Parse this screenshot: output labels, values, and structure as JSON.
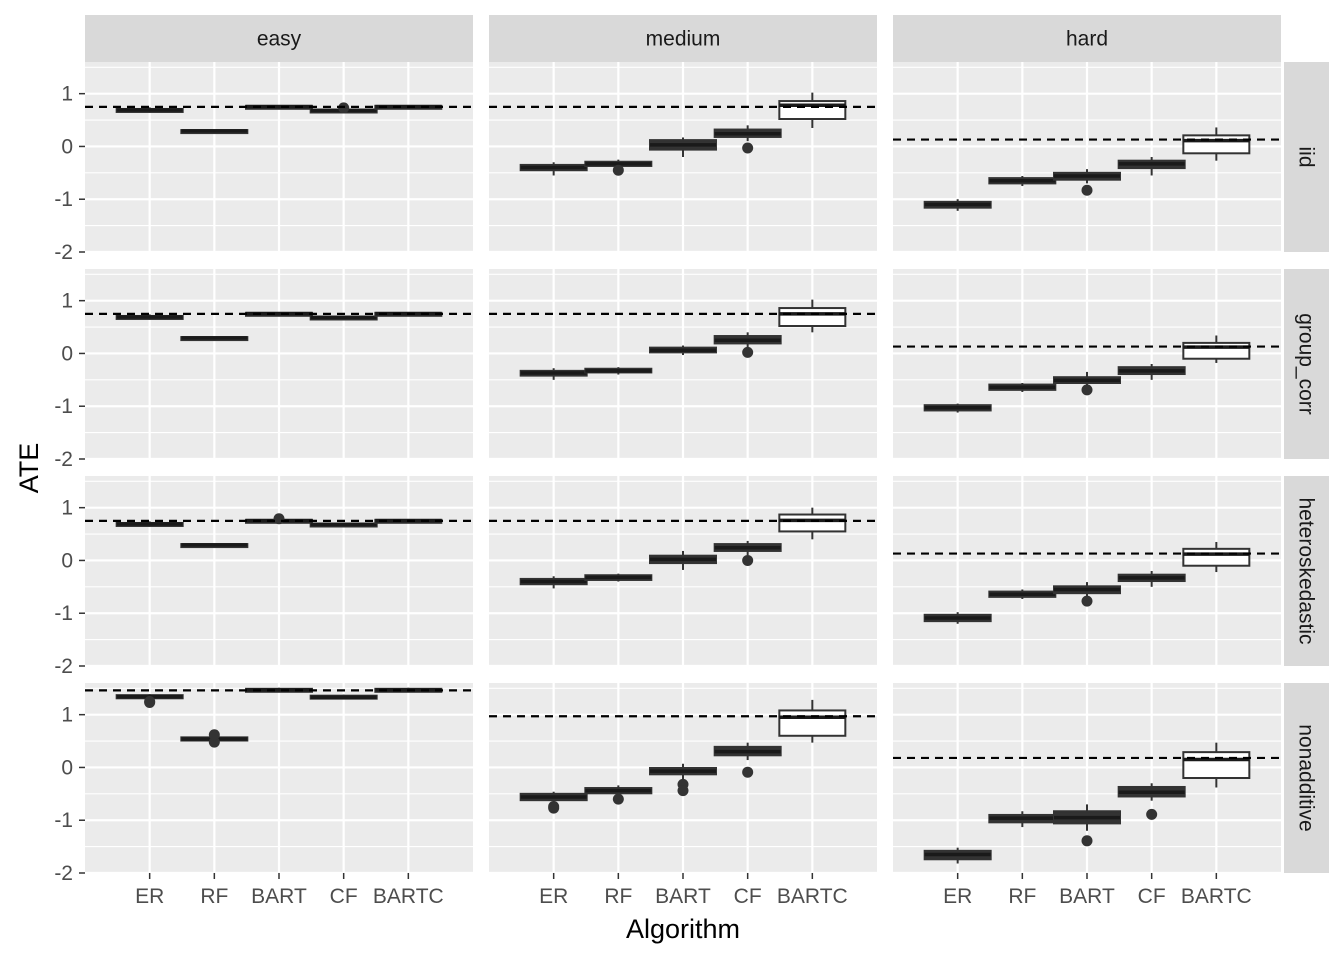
{
  "chart_data": {
    "type": "boxplot",
    "xlabel": "Algorithm",
    "ylabel": "ATE",
    "categories": [
      "ER",
      "RF",
      "BART",
      "CF",
      "BARTC"
    ],
    "ylim": [
      -2,
      1.6
    ],
    "yticks": [
      -2,
      -1,
      0,
      1
    ],
    "ytick_labels": [
      "-2",
      "-1",
      "0",
      "1"
    ],
    "grid": true,
    "reference_line_style": "dashed",
    "col_facets": [
      "easy",
      "medium",
      "hard"
    ],
    "row_facets": [
      "iid",
      "group_corr",
      "heteroskedastic",
      "nonadditive"
    ],
    "colors": {
      "panel_bg": "#ebebeb",
      "strip_bg": "#d9d9d9",
      "grid": "#ffffff",
      "box_dark": "#333333",
      "box_light": "#ffffff"
    },
    "panels": [
      {
        "row": "iid",
        "col": "easy",
        "reference": 0.75,
        "boxes": [
          {
            "q1": 0.66,
            "med": 0.69,
            "q3": 0.71,
            "wl": 0.64,
            "wh": 0.74,
            "out": []
          },
          {
            "q1": 0.28,
            "med": 0.295,
            "q3": 0.31,
            "wl": 0.27,
            "wh": 0.32,
            "out": []
          },
          {
            "q1": 0.74,
            "med": 0.755,
            "q3": 0.77,
            "wl": 0.73,
            "wh": 0.78,
            "out": []
          },
          {
            "q1": 0.66,
            "med": 0.68,
            "q3": 0.7,
            "wl": 0.64,
            "wh": 0.72,
            "out": [
              0.73
            ]
          },
          {
            "q1": 0.74,
            "med": 0.755,
            "q3": 0.77,
            "wl": 0.73,
            "wh": 0.78,
            "out": []
          }
        ]
      },
      {
        "row": "iid",
        "col": "medium",
        "reference": 0.75,
        "boxes": [
          {
            "q1": -0.45,
            "med": -0.4,
            "q3": -0.35,
            "wl": -0.55,
            "wh": -0.3,
            "out": []
          },
          {
            "q1": -0.37,
            "med": -0.33,
            "q3": -0.29,
            "wl": -0.42,
            "wh": -0.25,
            "out": [
              -0.45
            ]
          },
          {
            "q1": -0.06,
            "med": 0.03,
            "q3": 0.12,
            "wl": -0.2,
            "wh": 0.17,
            "out": []
          },
          {
            "q1": 0.18,
            "med": 0.24,
            "q3": 0.32,
            "wl": 0.1,
            "wh": 0.4,
            "out": [
              -0.03
            ]
          },
          {
            "q1": 0.52,
            "med": 0.78,
            "q3": 0.86,
            "wl": 0.35,
            "wh": 1.02,
            "out": []
          }
        ]
      },
      {
        "row": "iid",
        "col": "hard",
        "reference": 0.13,
        "boxes": [
          {
            "q1": -1.16,
            "med": -1.1,
            "q3": -1.05,
            "wl": -1.22,
            "wh": -1.0,
            "out": []
          },
          {
            "q1": -0.7,
            "med": -0.65,
            "q3": -0.6,
            "wl": -0.75,
            "wh": -0.56,
            "out": []
          },
          {
            "q1": -0.63,
            "med": -0.56,
            "q3": -0.5,
            "wl": -0.7,
            "wh": -0.43,
            "out": [
              -0.83
            ]
          },
          {
            "q1": -0.41,
            "med": -0.33,
            "q3": -0.27,
            "wl": -0.55,
            "wh": -0.2,
            "out": []
          },
          {
            "q1": -0.13,
            "med": 0.11,
            "q3": 0.21,
            "wl": -0.27,
            "wh": 0.36,
            "out": []
          }
        ]
      },
      {
        "row": "group_corr",
        "col": "easy",
        "reference": 0.75,
        "boxes": [
          {
            "q1": 0.66,
            "med": 0.69,
            "q3": 0.71,
            "wl": 0.64,
            "wh": 0.74,
            "out": []
          },
          {
            "q1": 0.28,
            "med": 0.295,
            "q3": 0.31,
            "wl": 0.27,
            "wh": 0.32,
            "out": []
          },
          {
            "q1": 0.74,
            "med": 0.755,
            "q3": 0.77,
            "wl": 0.73,
            "wh": 0.78,
            "out": []
          },
          {
            "q1": 0.66,
            "med": 0.68,
            "q3": 0.7,
            "wl": 0.64,
            "wh": 0.72,
            "out": []
          },
          {
            "q1": 0.74,
            "med": 0.755,
            "q3": 0.77,
            "wl": 0.73,
            "wh": 0.78,
            "out": []
          }
        ]
      },
      {
        "row": "group_corr",
        "col": "medium",
        "reference": 0.75,
        "boxes": [
          {
            "q1": -0.42,
            "med": -0.37,
            "q3": -0.33,
            "wl": -0.5,
            "wh": -0.28,
            "out": []
          },
          {
            "q1": -0.36,
            "med": -0.33,
            "q3": -0.29,
            "wl": -0.4,
            "wh": -0.26,
            "out": []
          },
          {
            "q1": 0.02,
            "med": 0.06,
            "q3": 0.11,
            "wl": -0.03,
            "wh": 0.15,
            "out": []
          },
          {
            "q1": 0.19,
            "med": 0.25,
            "q3": 0.33,
            "wl": 0.12,
            "wh": 0.4,
            "out": [
              0.02
            ]
          },
          {
            "q1": 0.52,
            "med": 0.75,
            "q3": 0.86,
            "wl": 0.4,
            "wh": 1.02,
            "out": []
          }
        ]
      },
      {
        "row": "group_corr",
        "col": "hard",
        "reference": 0.13,
        "boxes": [
          {
            "q1": -1.08,
            "med": -1.03,
            "q3": -0.98,
            "wl": -1.12,
            "wh": -0.95,
            "out": []
          },
          {
            "q1": -0.69,
            "med": -0.64,
            "q3": -0.59,
            "wl": -0.73,
            "wh": -0.56,
            "out": []
          },
          {
            "q1": -0.56,
            "med": -0.51,
            "q3": -0.45,
            "wl": -0.62,
            "wh": -0.35,
            "out": [
              -0.69
            ]
          },
          {
            "q1": -0.39,
            "med": -0.33,
            "q3": -0.26,
            "wl": -0.5,
            "wh": -0.2,
            "out": []
          },
          {
            "q1": -0.1,
            "med": 0.12,
            "q3": 0.2,
            "wl": -0.18,
            "wh": 0.34,
            "out": []
          }
        ]
      },
      {
        "row": "heteroskedastic",
        "col": "easy",
        "reference": 0.75,
        "boxes": [
          {
            "q1": 0.66,
            "med": 0.69,
            "q3": 0.71,
            "wl": 0.64,
            "wh": 0.74,
            "out": []
          },
          {
            "q1": 0.28,
            "med": 0.295,
            "q3": 0.31,
            "wl": 0.27,
            "wh": 0.32,
            "out": []
          },
          {
            "q1": 0.74,
            "med": 0.755,
            "q3": 0.77,
            "wl": 0.73,
            "wh": 0.78,
            "out": [
              0.79
            ]
          },
          {
            "q1": 0.66,
            "med": 0.68,
            "q3": 0.7,
            "wl": 0.64,
            "wh": 0.72,
            "out": []
          },
          {
            "q1": 0.74,
            "med": 0.755,
            "q3": 0.77,
            "wl": 0.73,
            "wh": 0.78,
            "out": []
          }
        ]
      },
      {
        "row": "heteroskedastic",
        "col": "medium",
        "reference": 0.75,
        "boxes": [
          {
            "q1": -0.45,
            "med": -0.4,
            "q3": -0.35,
            "wl": -0.53,
            "wh": -0.3,
            "out": []
          },
          {
            "q1": -0.37,
            "med": -0.32,
            "q3": -0.28,
            "wl": -0.4,
            "wh": -0.25,
            "out": []
          },
          {
            "q1": -0.05,
            "med": 0.02,
            "q3": 0.09,
            "wl": -0.18,
            "wh": 0.18,
            "out": []
          },
          {
            "q1": 0.18,
            "med": 0.24,
            "q3": 0.31,
            "wl": 0.1,
            "wh": 0.37,
            "out": [
              0.0
            ]
          },
          {
            "q1": 0.55,
            "med": 0.76,
            "q3": 0.87,
            "wl": 0.4,
            "wh": 1.0,
            "out": []
          }
        ]
      },
      {
        "row": "heteroskedastic",
        "col": "hard",
        "reference": 0.13,
        "boxes": [
          {
            "q1": -1.15,
            "med": -1.09,
            "q3": -1.03,
            "wl": -1.2,
            "wh": -0.98,
            "out": []
          },
          {
            "q1": -0.69,
            "med": -0.64,
            "q3": -0.59,
            "wl": -0.73,
            "wh": -0.55,
            "out": []
          },
          {
            "q1": -0.62,
            "med": -0.55,
            "q3": -0.49,
            "wl": -0.68,
            "wh": -0.41,
            "out": [
              -0.77
            ]
          },
          {
            "q1": -0.39,
            "med": -0.33,
            "q3": -0.27,
            "wl": -0.5,
            "wh": -0.2,
            "out": []
          },
          {
            "q1": -0.1,
            "med": 0.12,
            "q3": 0.22,
            "wl": -0.22,
            "wh": 0.35,
            "out": []
          }
        ]
      },
      {
        "row": "nonadditive",
        "col": "easy",
        "reference": 1.46,
        "boxes": [
          {
            "q1": 1.31,
            "med": 1.34,
            "q3": 1.37,
            "wl": 1.29,
            "wh": 1.39,
            "out": [
              1.25,
              1.23
            ]
          },
          {
            "q1": 0.51,
            "med": 0.54,
            "q3": 0.57,
            "wl": 0.49,
            "wh": 0.6,
            "out": [
              0.48,
              0.62
            ]
          },
          {
            "q1": 1.44,
            "med": 1.47,
            "q3": 1.49,
            "wl": 1.42,
            "wh": 1.51,
            "out": []
          },
          {
            "q1": 1.31,
            "med": 1.33,
            "q3": 1.36,
            "wl": 1.29,
            "wh": 1.38,
            "out": []
          },
          {
            "q1": 1.44,
            "med": 1.47,
            "q3": 1.49,
            "wl": 1.42,
            "wh": 1.51,
            "out": []
          }
        ]
      },
      {
        "row": "nonadditive",
        "col": "medium",
        "reference": 0.97,
        "boxes": [
          {
            "q1": -0.62,
            "med": -0.56,
            "q3": -0.5,
            "wl": -0.68,
            "wh": -0.46,
            "out": [
              -0.74,
              -0.77
            ]
          },
          {
            "q1": -0.49,
            "med": -0.44,
            "q3": -0.39,
            "wl": -0.55,
            "wh": -0.34,
            "out": [
              -0.6
            ]
          },
          {
            "q1": -0.13,
            "med": -0.07,
            "q3": -0.01,
            "wl": -0.22,
            "wh": 0.07,
            "out": [
              -0.32,
              -0.44
            ]
          },
          {
            "q1": 0.23,
            "med": 0.3,
            "q3": 0.39,
            "wl": 0.14,
            "wh": 0.47,
            "out": [
              -0.09
            ]
          },
          {
            "q1": 0.6,
            "med": 0.95,
            "q3": 1.08,
            "wl": 0.47,
            "wh": 1.28,
            "out": []
          }
        ]
      },
      {
        "row": "nonadditive",
        "col": "hard",
        "reference": 0.18,
        "boxes": [
          {
            "q1": -1.74,
            "med": -1.65,
            "q3": -1.58,
            "wl": -1.82,
            "wh": -1.52,
            "out": []
          },
          {
            "q1": -1.04,
            "med": -0.96,
            "q3": -0.9,
            "wl": -1.13,
            "wh": -0.83,
            "out": []
          },
          {
            "q1": -1.06,
            "med": -0.95,
            "q3": -0.83,
            "wl": -1.2,
            "wh": -0.7,
            "out": [
              -1.39
            ]
          },
          {
            "q1": -0.55,
            "med": -0.47,
            "q3": -0.37,
            "wl": -0.63,
            "wh": -0.3,
            "out": [
              -0.89
            ]
          },
          {
            "q1": -0.2,
            "med": 0.15,
            "q3": 0.29,
            "wl": -0.38,
            "wh": 0.47,
            "out": []
          }
        ]
      }
    ]
  }
}
